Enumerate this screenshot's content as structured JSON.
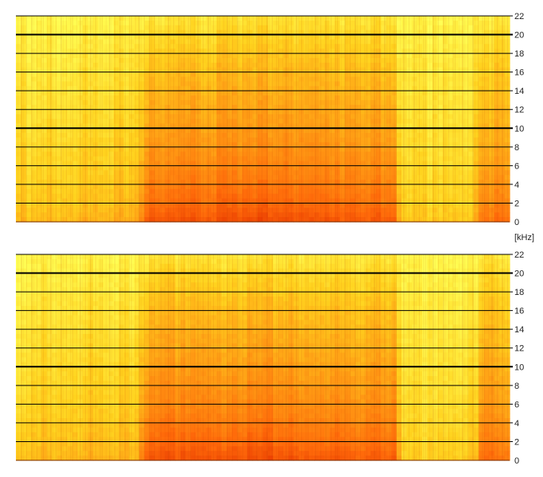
{
  "chart_data": [
    {
      "type": "heatmap",
      "channel": 1,
      "y_unit": "kHz",
      "ylim": [
        0,
        22
      ],
      "y_ticks": [
        {
          "value": 0,
          "label": "0"
        },
        {
          "value": 2,
          "label": "2"
        },
        {
          "value": 4,
          "label": "4"
        },
        {
          "value": 6,
          "label": "6"
        },
        {
          "value": 8,
          "label": "8"
        },
        {
          "value": 10,
          "label": "10"
        },
        {
          "value": 12,
          "label": "12"
        },
        {
          "value": 14,
          "label": "14"
        },
        {
          "value": 16,
          "label": "16"
        },
        {
          "value": 18,
          "label": "18"
        },
        {
          "value": 20,
          "label": "20"
        },
        {
          "value": 22,
          "label": "22"
        }
      ],
      "emphasized_gridlines": [
        10,
        20
      ],
      "grid": true,
      "colormap": [
        "#ffff55",
        "#ffd21e",
        "#ff9a14",
        "#ff6a0a",
        "#e83a00"
      ],
      "time_profile": [
        {
          "t": 0.0,
          "energy": 0.35
        },
        {
          "t": 0.25,
          "energy": 0.4
        },
        {
          "t": 0.26,
          "energy": 0.85
        },
        {
          "t": 0.5,
          "energy": 0.9
        },
        {
          "t": 0.77,
          "energy": 0.8
        },
        {
          "t": 0.78,
          "energy": 0.25
        },
        {
          "t": 0.93,
          "energy": 0.3
        },
        {
          "t": 0.94,
          "energy": 0.7
        },
        {
          "t": 1.0,
          "energy": 0.7
        }
      ],
      "freq_profile": [
        {
          "khz": 0,
          "energy": 1.0
        },
        {
          "khz": 2,
          "energy": 0.85
        },
        {
          "khz": 5,
          "energy": 0.7
        },
        {
          "khz": 10,
          "energy": 0.55
        },
        {
          "khz": 16,
          "energy": 0.4
        },
        {
          "khz": 20,
          "energy": 0.25
        },
        {
          "khz": 22,
          "energy": 0.15
        }
      ]
    },
    {
      "type": "heatmap",
      "channel": 2,
      "y_unit": "kHz",
      "ylim": [
        0,
        22
      ],
      "y_ticks": [
        {
          "value": 0,
          "label": "0"
        },
        {
          "value": 2,
          "label": "2"
        },
        {
          "value": 4,
          "label": "4"
        },
        {
          "value": 6,
          "label": "6"
        },
        {
          "value": 8,
          "label": "8"
        },
        {
          "value": 10,
          "label": "10"
        },
        {
          "value": 12,
          "label": "12"
        },
        {
          "value": 14,
          "label": "14"
        },
        {
          "value": 16,
          "label": "16"
        },
        {
          "value": 18,
          "label": "18"
        },
        {
          "value": 20,
          "label": "20"
        },
        {
          "value": 22,
          "label": "22"
        }
      ],
      "emphasized_gridlines": [
        10,
        20
      ],
      "grid": true,
      "colormap": [
        "#ffff55",
        "#ffd21e",
        "#ff9a14",
        "#ff6a0a",
        "#e83a00"
      ],
      "time_profile": [
        {
          "t": 0.0,
          "energy": 0.35
        },
        {
          "t": 0.25,
          "energy": 0.4
        },
        {
          "t": 0.26,
          "energy": 0.85
        },
        {
          "t": 0.5,
          "energy": 0.9
        },
        {
          "t": 0.77,
          "energy": 0.8
        },
        {
          "t": 0.78,
          "energy": 0.25
        },
        {
          "t": 0.93,
          "energy": 0.3
        },
        {
          "t": 0.94,
          "energy": 0.7
        },
        {
          "t": 1.0,
          "energy": 0.7
        }
      ],
      "freq_profile": [
        {
          "khz": 0,
          "energy": 1.0
        },
        {
          "khz": 2,
          "energy": 0.85
        },
        {
          "khz": 5,
          "energy": 0.7
        },
        {
          "khz": 10,
          "energy": 0.55
        },
        {
          "khz": 16,
          "energy": 0.4
        },
        {
          "khz": 20,
          "energy": 0.25
        },
        {
          "khz": 22,
          "energy": 0.15
        }
      ]
    }
  ],
  "unit_label": "[kHz]"
}
